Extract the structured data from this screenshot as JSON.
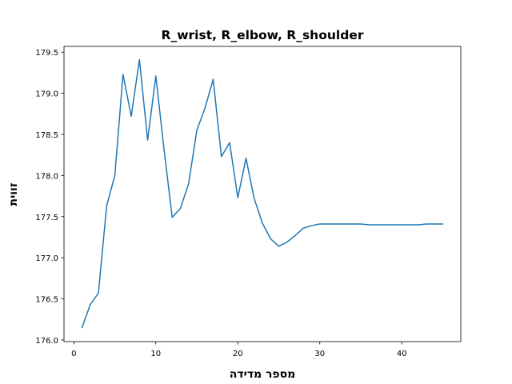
{
  "chart_data": {
    "type": "line",
    "title": "R_wrist, R_elbow, R_shoulder",
    "xlabel": "מספר מדידה",
    "ylabel": "זווית",
    "xlim": [
      -1.2,
      47.2
    ],
    "ylim": [
      175.98,
      179.57
    ],
    "xticks": [
      0,
      10,
      20,
      30,
      40
    ],
    "yticks": [
      176.0,
      176.5,
      177.0,
      177.5,
      178.0,
      178.5,
      179.0,
      179.5
    ],
    "grid": false,
    "legend": "none",
    "colors": {
      "line": "#1f77b4",
      "axes": "#000000",
      "background": "#ffffff"
    },
    "series": [
      {
        "x": [
          1,
          2,
          3,
          4,
          5,
          6,
          7,
          8,
          9,
          10,
          11,
          12,
          13,
          14,
          15,
          16,
          17,
          18,
          19,
          20,
          21,
          22,
          23,
          24,
          25,
          26,
          27,
          28,
          29,
          30,
          31,
          32,
          33,
          34,
          35,
          36,
          37,
          38,
          39,
          40,
          41,
          42,
          43,
          44,
          45
        ],
        "values": [
          176.15,
          176.43,
          176.57,
          177.63,
          178.0,
          179.23,
          178.72,
          179.41,
          178.43,
          179.21,
          178.32,
          177.49,
          177.6,
          177.9,
          178.55,
          178.82,
          179.17,
          178.23,
          178.4,
          177.73,
          178.21,
          177.72,
          177.42,
          177.23,
          177.14,
          177.19,
          177.27,
          177.36,
          177.39,
          177.41,
          177.41,
          177.41,
          177.41,
          177.41,
          177.41,
          177.4,
          177.4,
          177.4,
          177.4,
          177.4,
          177.4,
          177.4,
          177.41,
          177.41,
          177.41
        ]
      }
    ]
  }
}
